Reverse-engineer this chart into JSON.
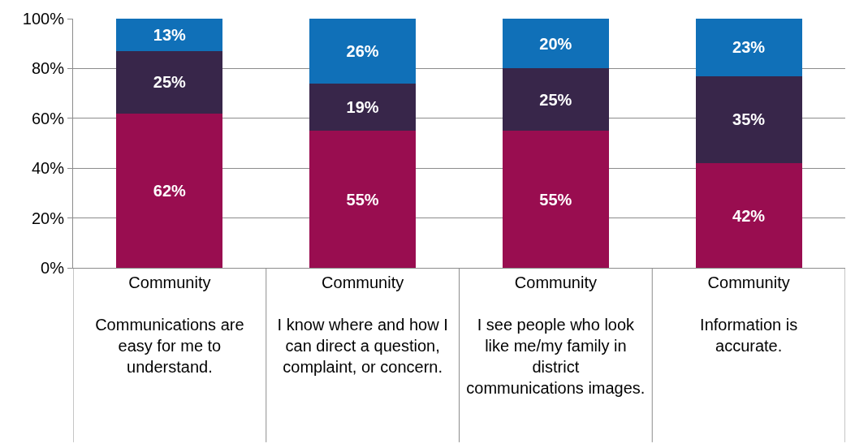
{
  "chart_data": {
    "type": "bar",
    "stacked": true,
    "categories": [
      "Community\n\nCommunications are easy for me to understand.",
      "Community\n\nI know where and how I can direct a question, complaint, or concern.",
      "Community\n\nI see people who look like me/my family in district communications images.",
      "Community\n\nInformation is accurate."
    ],
    "series": [
      {
        "color": "#990d50",
        "values": [
          62,
          55,
          55,
          42
        ],
        "value_labels": [
          "62%",
          "55%",
          "55%",
          "42%"
        ]
      },
      {
        "color": "#38264a",
        "values": [
          25,
          19,
          25,
          35
        ],
        "value_labels": [
          "25%",
          "19%",
          "25%",
          "35%"
        ]
      },
      {
        "color": "#1070b8",
        "values": [
          13,
          26,
          20,
          23
        ],
        "value_labels": [
          "13%",
          "26%",
          "20%",
          "23%"
        ]
      }
    ],
    "ylim": [
      0,
      100
    ],
    "yticks": [
      {
        "value": 0,
        "label": "0%"
      },
      {
        "value": 20,
        "label": "20%"
      },
      {
        "value": 40,
        "label": "40%"
      },
      {
        "value": 60,
        "label": "60%"
      },
      {
        "value": 80,
        "label": "80%"
      },
      {
        "value": 100,
        "label": "100%"
      }
    ],
    "grid": "y",
    "legend": false
  }
}
